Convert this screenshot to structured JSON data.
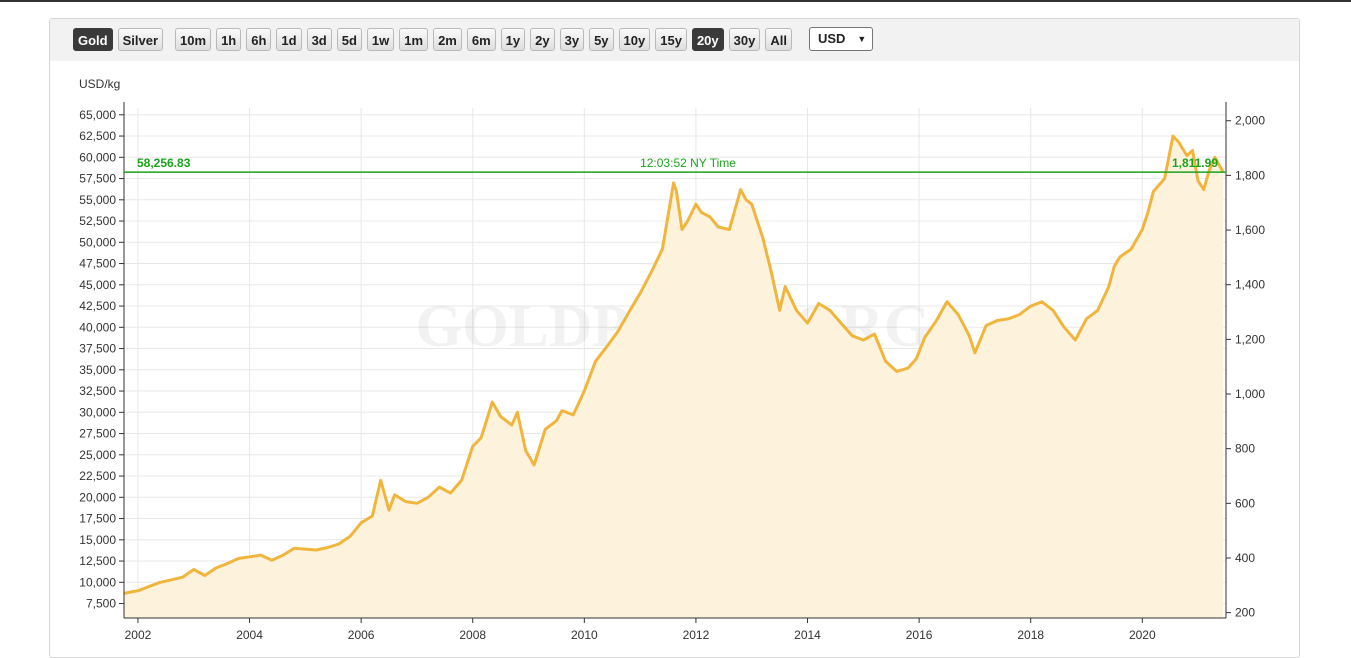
{
  "toolbar": {
    "metals": [
      {
        "label": "Gold",
        "active": true
      },
      {
        "label": "Silver",
        "active": false
      }
    ],
    "ranges": [
      {
        "label": "10m",
        "active": false
      },
      {
        "label": "1h",
        "active": false
      },
      {
        "label": "6h",
        "active": false
      },
      {
        "label": "1d",
        "active": false
      },
      {
        "label": "3d",
        "active": false
      },
      {
        "label": "5d",
        "active": false
      },
      {
        "label": "1w",
        "active": false
      },
      {
        "label": "1m",
        "active": false
      },
      {
        "label": "2m",
        "active": false
      },
      {
        "label": "6m",
        "active": false
      },
      {
        "label": "1y",
        "active": false
      },
      {
        "label": "2y",
        "active": false
      },
      {
        "label": "3y",
        "active": false
      },
      {
        "label": "5y",
        "active": false
      },
      {
        "label": "10y",
        "active": false
      },
      {
        "label": "15y",
        "active": false
      },
      {
        "label": "20y",
        "active": true
      },
      {
        "label": "30y",
        "active": false
      },
      {
        "label": "All",
        "active": false
      }
    ],
    "currency": "USD",
    "chevron_icon": "chevron-down-icon"
  },
  "chart_data": {
    "type": "area",
    "ylabel_left": "USD/kg",
    "watermark": "GOLDPRICE.ORG",
    "current": {
      "left_value_label": "58,256.83",
      "right_value_label": "1,811.99",
      "time_label": "12:03:52 NY Time",
      "y": 58256.83
    },
    "xlim": [
      2001.75,
      2021.5
    ],
    "ylim": [
      5800,
      65800
    ],
    "y_ticks": [
      7500,
      10000,
      12500,
      15000,
      17500,
      20000,
      22500,
      25000,
      27500,
      30000,
      32500,
      35000,
      37500,
      40000,
      42500,
      45000,
      47500,
      50000,
      52500,
      55000,
      57500,
      60000,
      62500,
      65000
    ],
    "y_tick_labels": [
      "7,500",
      "10,000",
      "12,500",
      "15,000",
      "17,500",
      "20,000",
      "22,500",
      "25,000",
      "27,500",
      "30,000",
      "32,500",
      "35,000",
      "37,500",
      "40,000",
      "42,500",
      "45,000",
      "47,500",
      "50,000",
      "52,500",
      "55,000",
      "57,500",
      "60,000",
      "62,500",
      "65,000"
    ],
    "y2_ticks": [
      200,
      400,
      600,
      800,
      1000,
      1200,
      1400,
      1600,
      1800,
      2000
    ],
    "y2_tick_labels": [
      "200",
      "400",
      "600",
      "800",
      "1,000",
      "1,200",
      "1,400",
      "1,600",
      "1,800",
      "2,000"
    ],
    "y2_per_y": 0.031103,
    "x_ticks": [
      2002,
      2004,
      2006,
      2008,
      2010,
      2012,
      2014,
      2016,
      2018,
      2020
    ],
    "x_tick_labels": [
      "2002",
      "2004",
      "2006",
      "2008",
      "2010",
      "2012",
      "2014",
      "2016",
      "2018",
      "2020"
    ],
    "grid": true,
    "colors": {
      "line": "#f0b53d",
      "fill": "#fdf3dc",
      "current_line": "#1aa31a",
      "grid": "#e8e8e8",
      "axis": "#333333"
    },
    "series": [
      {
        "x": [
          2001.75,
          2001.9,
          2002.0,
          2002.2,
          2002.4,
          2002.6,
          2002.8,
          2003.0,
          2003.2,
          2003.4,
          2003.6,
          2003.8,
          2004.0,
          2004.2,
          2004.4,
          2004.6,
          2004.8,
          2005.0,
          2005.2,
          2005.4,
          2005.6,
          2005.8,
          2006.0,
          2006.2,
          2006.35,
          2006.5,
          2006.6,
          2006.8,
          2007.0,
          2007.2,
          2007.4,
          2007.6,
          2007.8,
          2008.0,
          2008.15,
          2008.35,
          2008.5,
          2008.7,
          2008.8,
          2008.95,
          2009.1,
          2009.3,
          2009.5,
          2009.6,
          2009.8,
          2010.0,
          2010.2,
          2010.4,
          2010.6,
          2010.8,
          2011.0,
          2011.2,
          2011.4,
          2011.6,
          2011.65,
          2011.75,
          2011.85,
          2012.0,
          2012.1,
          2012.25,
          2012.4,
          2012.6,
          2012.8,
          2012.9,
          2013.0,
          2013.2,
          2013.35,
          2013.5,
          2013.6,
          2013.8,
          2014.0,
          2014.2,
          2014.4,
          2014.6,
          2014.8,
          2015.0,
          2015.2,
          2015.4,
          2015.6,
          2015.8,
          2015.95,
          2016.1,
          2016.3,
          2016.5,
          2016.7,
          2016.9,
          2017.0,
          2017.2,
          2017.4,
          2017.6,
          2017.8,
          2018.0,
          2018.2,
          2018.4,
          2018.6,
          2018.8,
          2019.0,
          2019.2,
          2019.4,
          2019.5,
          2019.6,
          2019.8,
          2020.0,
          2020.1,
          2020.2,
          2020.4,
          2020.55,
          2020.65,
          2020.8,
          2020.9,
          2021.0,
          2021.1,
          2021.2,
          2021.3,
          2021.45
        ],
        "values": [
          8700,
          8900,
          9000,
          9500,
          10000,
          10300,
          10600,
          11500,
          10800,
          11700,
          12200,
          12800,
          13000,
          13200,
          12600,
          13200,
          14000,
          13900,
          13800,
          14100,
          14500,
          15400,
          17000,
          17800,
          22000,
          18500,
          20300,
          19500,
          19300,
          20000,
          21200,
          20500,
          22000,
          26000,
          27000,
          31200,
          29500,
          28500,
          30000,
          25500,
          23800,
          28000,
          29000,
          30200,
          29700,
          32500,
          36000,
          37700,
          39500,
          41800,
          44000,
          46500,
          49200,
          57000,
          56000,
          51500,
          52500,
          54500,
          53500,
          53000,
          51800,
          51500,
          56200,
          55000,
          54500,
          50500,
          46500,
          42000,
          44800,
          42000,
          40500,
          42800,
          42000,
          40500,
          39000,
          38500,
          39200,
          36000,
          34800,
          35200,
          36300,
          38800,
          40700,
          43000,
          41500,
          39000,
          37000,
          40200,
          40800,
          41000,
          41500,
          42500,
          43000,
          42000,
          40000,
          38500,
          41000,
          42000,
          44800,
          47200,
          48300,
          49200,
          51500,
          53500,
          56000,
          57500,
          62500,
          61800,
          60200,
          60800,
          57200,
          56200,
          58500,
          60000,
          58257
        ]
      }
    ]
  }
}
